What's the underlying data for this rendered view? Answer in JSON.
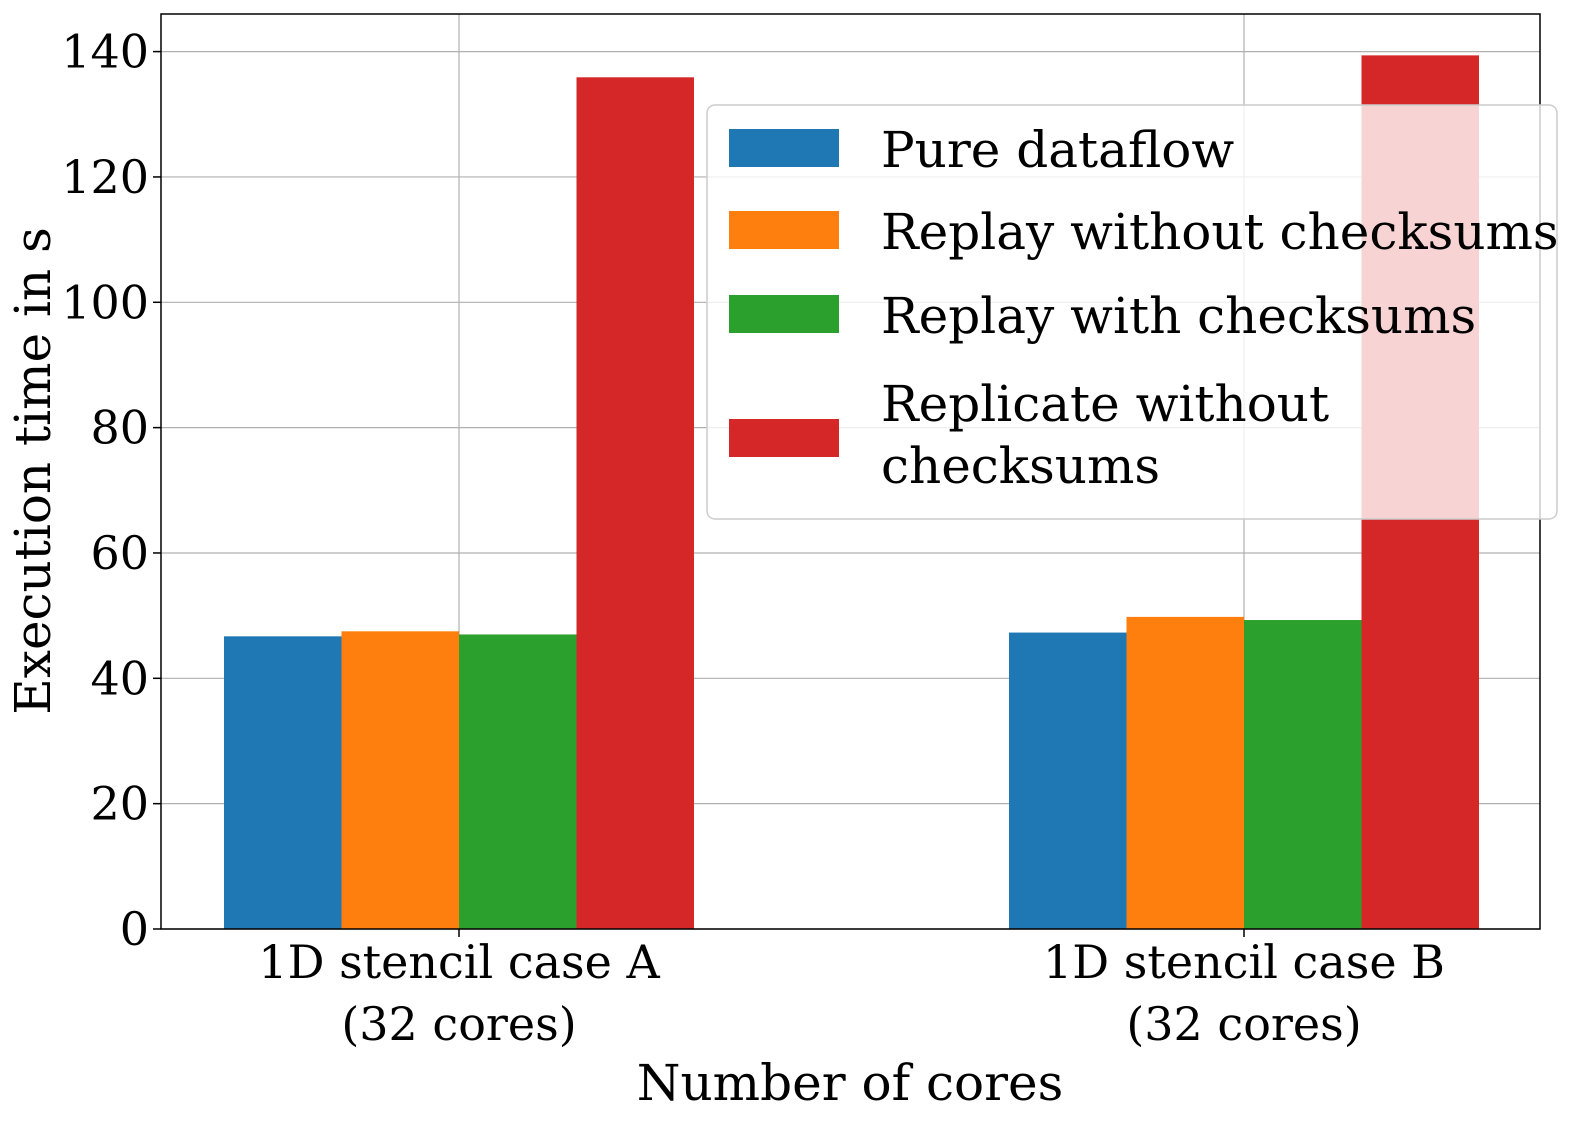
{
  "chart_data": {
    "type": "bar",
    "xlabel": "Number of cores",
    "ylabel": "Execution time in s",
    "ylim": [
      0,
      146
    ],
    "yticks": [
      0,
      20,
      40,
      60,
      80,
      100,
      120,
      140
    ],
    "grid": true,
    "legend_position": "top-right",
    "categories": [
      [
        "1D stencil case A",
        "(32 cores)"
      ],
      [
        "1D stencil case B",
        "(32 cores)"
      ]
    ],
    "series": [
      {
        "name": "Pure dataflow",
        "color": "#1f77b4",
        "values": [
          46.7,
          47.3
        ]
      },
      {
        "name": "Replay without checksums",
        "color": "#ff7f0e",
        "values": [
          47.5,
          49.8
        ]
      },
      {
        "name": "Replay with checksums",
        "color": "#2ca02c",
        "values": [
          47.0,
          49.3
        ]
      },
      {
        "name": "Replicate without checksums",
        "color": "#d62728",
        "values": [
          135.9,
          139.4
        ]
      }
    ]
  }
}
